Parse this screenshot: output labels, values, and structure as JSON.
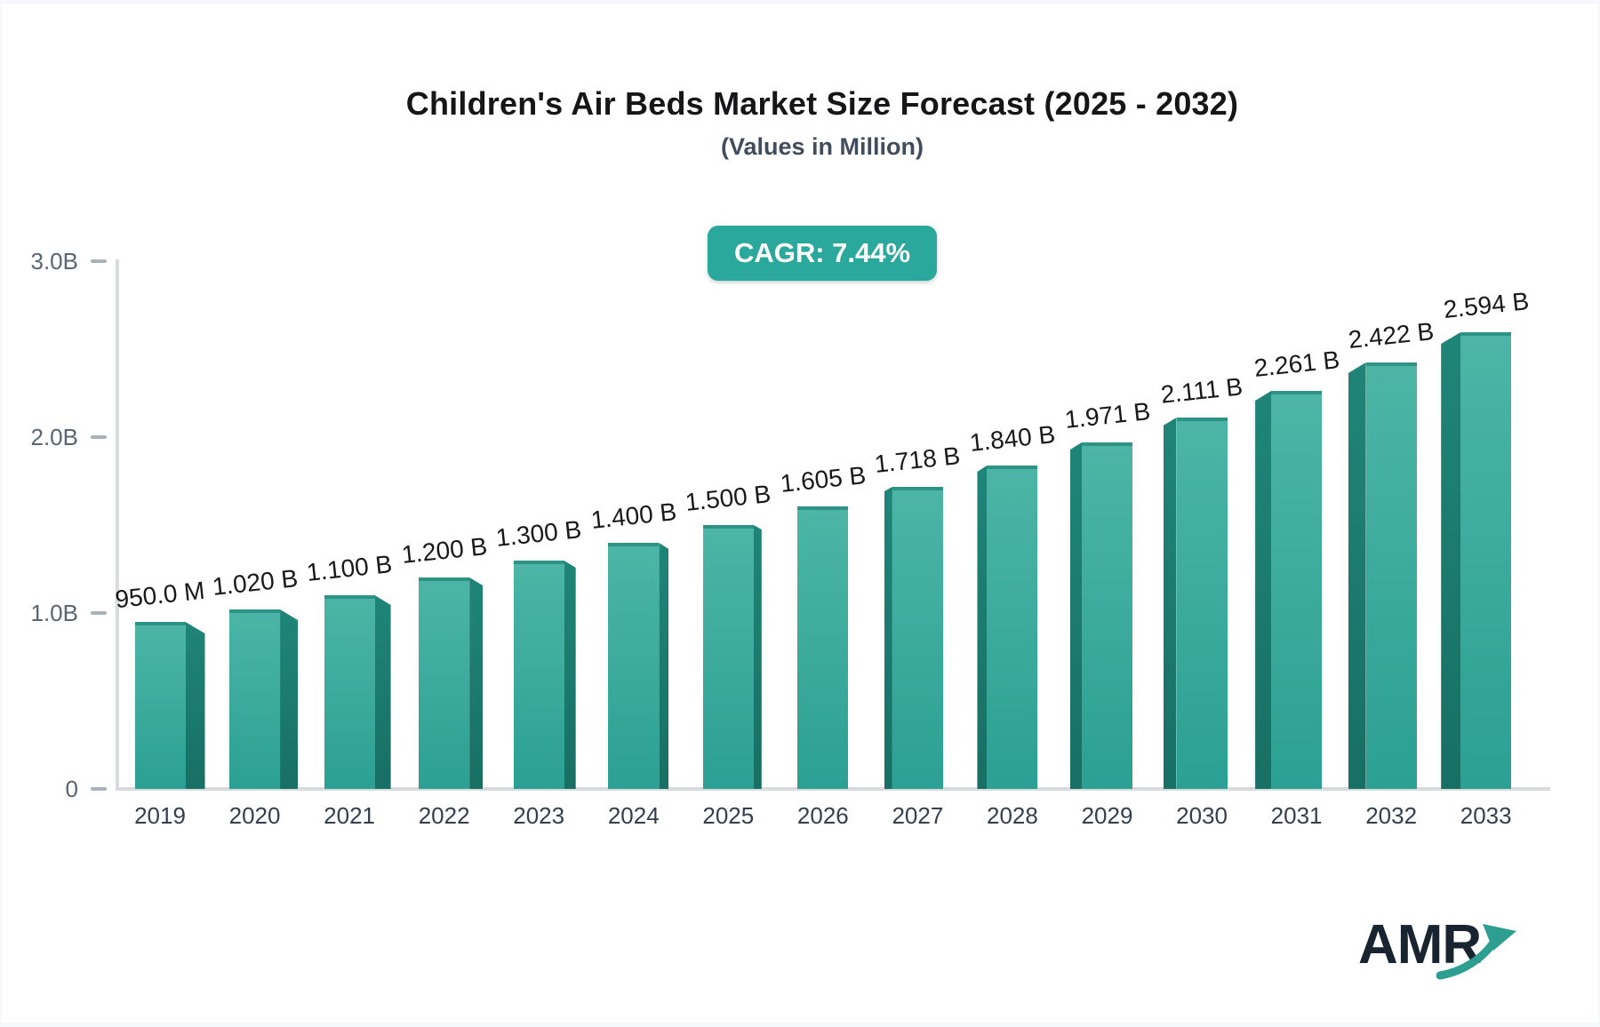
{
  "title": "Children's Air Beds Market Size Forecast (2025 - 2032)",
  "subtitle": "(Values in Million)",
  "cagr_badge": "CAGR: 7.44%",
  "logo": {
    "text": "AMR",
    "icon": "growth-arrow-icon"
  },
  "colors": {
    "bar_face_top": "#4CB5A6",
    "bar_face_bottom": "#2BA093",
    "bar_top_edge": "#2D9386",
    "bar_side_top": "#1F8578",
    "bar_side_bottom": "#186F64",
    "badge_bg": "#2AA89B",
    "badge_text": "#FFFFFF",
    "axis_line": "#D7DBE0",
    "tick_mark": "#A9B1BB",
    "y_label": "#5A6572",
    "x_label": "#333F4E",
    "value_label": "#191919",
    "title_text": "#161618",
    "subtitle_text": "#414D5C",
    "logo_navy": "#182430",
    "logo_teal": "#2E9E91",
    "page_bg": "#F7F8FB",
    "card_bg": "#FFFFFF"
  },
  "chart_data": {
    "type": "bar",
    "title": "Children's Air Beds Market Size Forecast (2025 - 2032)",
    "subtitle": "(Values in Million)",
    "cagr": "7.44%",
    "categories": [
      "2019",
      "2020",
      "2021",
      "2022",
      "2023",
      "2024",
      "2025",
      "2026",
      "2027",
      "2028",
      "2029",
      "2030",
      "2031",
      "2032",
      "2033"
    ],
    "values_billion": [
      0.95,
      1.02,
      1.1,
      1.2,
      1.3,
      1.4,
      1.5,
      1.605,
      1.718,
      1.84,
      1.971,
      2.111,
      2.261,
      2.422,
      2.594
    ],
    "value_labels": [
      "950.0 M",
      "1.020 B",
      "1.100 B",
      "1.200 B",
      "1.300 B",
      "1.400 B",
      "1.500 B",
      "1.605 B",
      "1.718 B",
      "1.840 B",
      "1.971 B",
      "2.111 B",
      "2.261 B",
      "2.422 B",
      "2.594 B"
    ],
    "xlabel": "",
    "ylabel": "",
    "y_axis": {
      "range": [
        0,
        3.0
      ],
      "ticks": [
        {
          "value": 3.0,
          "label": "3.0B"
        },
        {
          "value": 2.0,
          "label": "2.0B"
        },
        {
          "value": 1.0,
          "label": "1.0B"
        },
        {
          "value": 0.0,
          "label": "0"
        }
      ]
    },
    "grid": false,
    "legend": false,
    "bar_style": "3d-extruded, perspective vanishing toward center bar (2026)"
  }
}
